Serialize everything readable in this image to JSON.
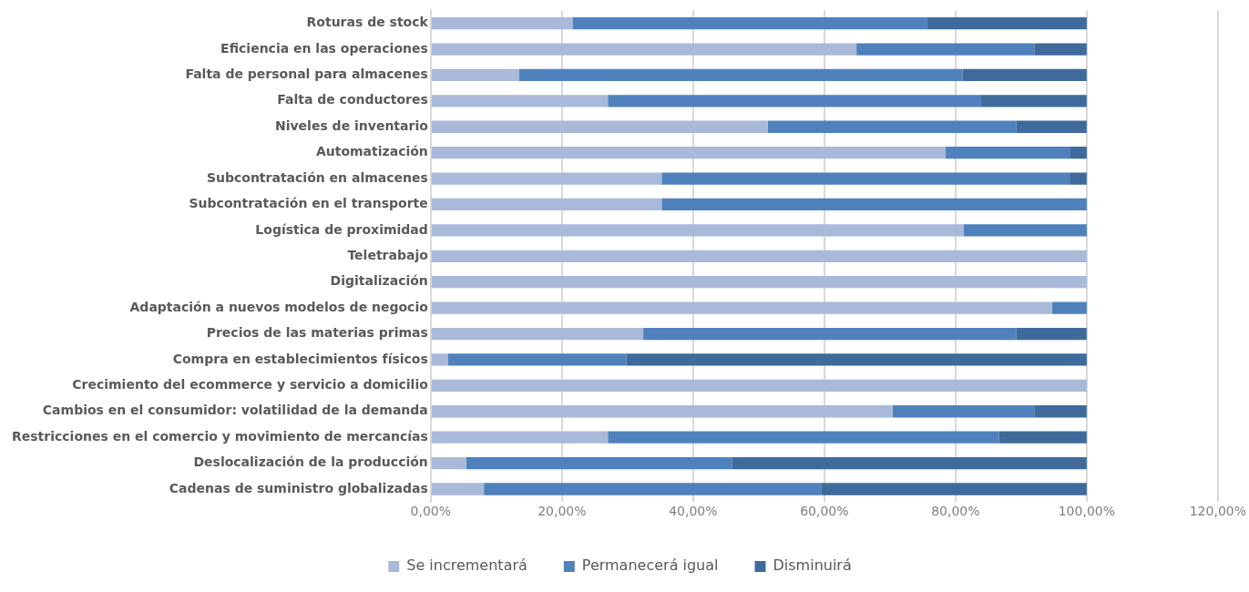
{
  "chart_data": {
    "type": "bar",
    "orientation": "horizontal",
    "stacked": true,
    "categories": [
      "Roturas de stock",
      "Eficiencia en las operaciones",
      "Falta de personal para almacenes",
      "Falta de conductores",
      "Niveles de inventario",
      "Automatización",
      "Subcontratación en almacenes",
      "Subcontratación en el transporte",
      "Logística de proximidad",
      "Teletrabajo",
      "Digitalización",
      "Adaptación a nuevos modelos de negocio",
      "Precios de las materias primas",
      "Compra en establecimientos físicos",
      "Crecimiento del ecommerce y servicio a domicilio",
      "Cambios en el consumidor: volatilidad de la demanda",
      "Restricciones en el comercio y movimiento de mercancías",
      "Deslocalización de la producción",
      "Cadenas de suministro globalizadas"
    ],
    "series": [
      {
        "name": "Se incrementará",
        "color": "#a9b9d9",
        "values": [
          21.6,
          64.9,
          13.5,
          27.0,
          51.4,
          78.5,
          35.2,
          35.2,
          81.2,
          100,
          100,
          94.7,
          32.4,
          2.6,
          100,
          70.4,
          27.0,
          5.4,
          8.1
        ]
      },
      {
        "name": "Permanecerá igual",
        "color": "#4f81bd",
        "values": [
          54.1,
          27.1,
          67.6,
          56.9,
          37.9,
          18.9,
          62.2,
          64.8,
          18.8,
          0,
          0,
          5.3,
          56.9,
          27.2,
          0,
          21.6,
          59.6,
          40.5,
          51.4
        ]
      },
      {
        "name": "Disminuirá",
        "color": "#3f6a9c",
        "values": [
          24.3,
          8.0,
          18.9,
          16.1,
          10.7,
          2.6,
          2.6,
          0,
          0,
          0,
          0,
          0,
          10.7,
          70.2,
          0,
          8.0,
          13.4,
          54.1,
          40.5
        ]
      }
    ],
    "xlim": [
      0,
      120
    ],
    "xticks": [
      {
        "value": 0,
        "label": "0,00%"
      },
      {
        "value": 20,
        "label": "20,00%"
      },
      {
        "value": 40,
        "label": "40,00%"
      },
      {
        "value": 60,
        "label": "60,00%"
      },
      {
        "value": 80,
        "label": "80,00%"
      },
      {
        "value": 100,
        "label": "100,00%"
      },
      {
        "value": 120,
        "label": "120,00%"
      }
    ],
    "grid": "x",
    "legend": "bottom"
  }
}
